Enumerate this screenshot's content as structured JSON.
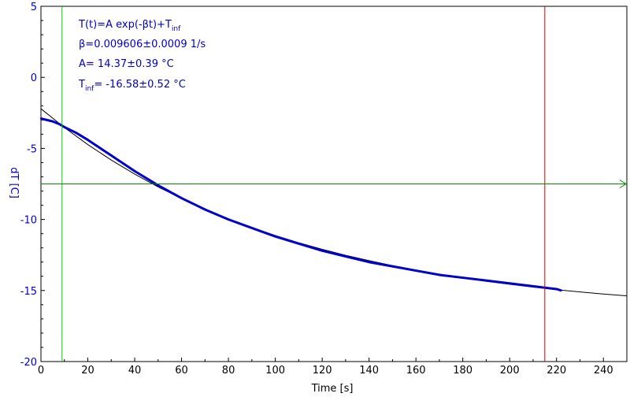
{
  "chart_data": {
    "type": "line",
    "title": "",
    "xlabel": "Time [s]",
    "ylabel": "dT [C]",
    "xlim": [
      0,
      250
    ],
    "ylim": [
      -20,
      5
    ],
    "xticks": [
      0,
      20,
      40,
      60,
      80,
      100,
      120,
      140,
      160,
      180,
      200,
      220,
      240
    ],
    "yticks": [
      5,
      0,
      -5,
      -10,
      -15,
      -20
    ],
    "grid": false,
    "colors": {
      "data": "#0000cc",
      "fit": "#000000",
      "cursor_start": "#00cc00",
      "cursor_end": "#cc0000",
      "cursor_level": "#008800",
      "axis_text": "#0000cc"
    },
    "series": [
      {
        "x": [
          0,
          5,
          8,
          10,
          15,
          20,
          30,
          40,
          50,
          60,
          70,
          80,
          90,
          100,
          110,
          120,
          130,
          140,
          150,
          160,
          170,
          180,
          190,
          200,
          210,
          215,
          220,
          222
        ],
        "y": [
          -2.9,
          -3.1,
          -3.3,
          -3.5,
          -3.9,
          -4.4,
          -5.5,
          -6.6,
          -7.6,
          -8.5,
          -9.3,
          -10.0,
          -10.6,
          -11.2,
          -11.7,
          -12.2,
          -12.6,
          -13.0,
          -13.3,
          -13.6,
          -13.9,
          -14.1,
          -14.3,
          -14.5,
          -14.7,
          -14.8,
          -14.9,
          -15.0
        ]
      },
      {
        "x": [
          0,
          10,
          20,
          30,
          40,
          50,
          60,
          70,
          80,
          90,
          100,
          110,
          120,
          130,
          140,
          150,
          160,
          170,
          180,
          190,
          200,
          210,
          220,
          230,
          240,
          250
        ],
        "y": [
          -2.21,
          -3.53,
          -4.73,
          -5.82,
          -6.81,
          -7.71,
          -8.53,
          -9.28,
          -9.95,
          -10.57,
          -11.13,
          -11.64,
          -12.1,
          -12.52,
          -12.9,
          -13.25,
          -13.56,
          -13.85,
          -14.11,
          -14.35,
          -14.56,
          -14.76,
          -14.94,
          -15.1,
          -15.25,
          -15.38
        ]
      }
    ],
    "cursors": {
      "x_start": 9,
      "x_end": 215,
      "y_level": -7.5
    },
    "annotations": {
      "formula": {
        "base": "T(t)=A exp(-βt)+T",
        "sub": "inf"
      },
      "beta": "β=0.009606±0.0009 1/s",
      "a": "A= 14.37±0.39 °C",
      "tinf": {
        "base": "T",
        "sub": "inf",
        "rest": "= -16.58±0.52 °C"
      }
    }
  }
}
